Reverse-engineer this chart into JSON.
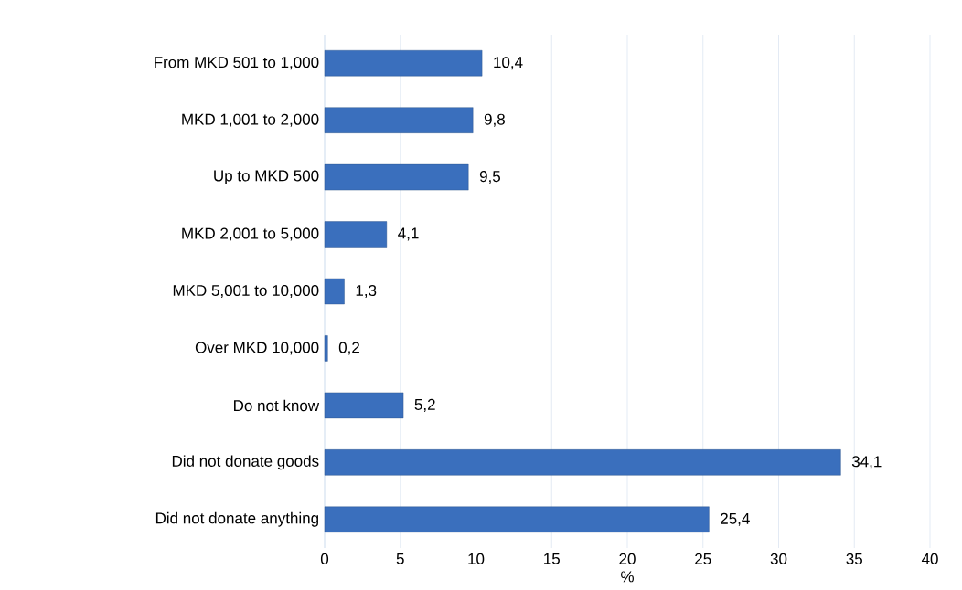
{
  "chart_data": {
    "type": "bar",
    "orientation": "horizontal",
    "xlabel": "%",
    "categories": [
      "From MKD 501 to 1,000",
      "MKD 1,001 to 2,000",
      "Up to MKD 500",
      "MKD 2,001 to 5,000",
      "MKD 5,001 to 10,000",
      "Over MKD 10,000",
      "Do not know",
      "Did not donate goods",
      "Did not donate anything"
    ],
    "values": [
      10.4,
      9.8,
      9.5,
      4.1,
      1.3,
      0.2,
      5.2,
      34.1,
      25.4
    ],
    "value_labels": [
      "10,4",
      "9,8",
      "9,5",
      "4,1",
      "1,3",
      "0,2",
      "5,2",
      "34,1",
      "25,4"
    ],
    "color": "#3a6fbd",
    "xlim": [
      0,
      40
    ],
    "xticks": [
      0,
      5,
      10,
      15,
      20,
      25,
      30,
      35,
      40
    ],
    "grid": "x"
  }
}
